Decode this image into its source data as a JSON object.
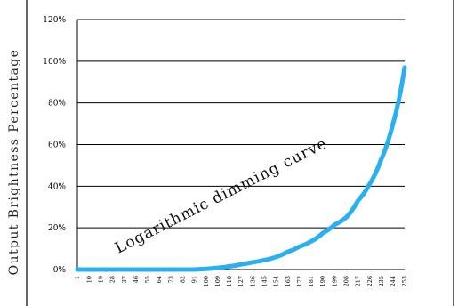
{
  "chart_data": {
    "type": "line",
    "title": "",
    "xlabel": "",
    "ylabel": "Output Brightness Percentage",
    "annotation": "Logarithmic dimming curve",
    "ylim": [
      0,
      120
    ],
    "y_ticks": [
      "0%",
      "20%",
      "40%",
      "60%",
      "80%",
      "100%",
      "120%"
    ],
    "y_tick_values": [
      0,
      20,
      40,
      60,
      80,
      100,
      120
    ],
    "grid": "horizontal",
    "series_color": "#2ab0f0",
    "x": [
      1,
      10,
      19,
      28,
      37,
      46,
      55,
      64,
      73,
      82,
      91,
      100,
      109,
      118,
      127,
      136,
      145,
      154,
      163,
      172,
      181,
      190,
      199,
      208,
      217,
      226,
      235,
      244,
      253
    ],
    "x_tick_labels": [
      "1",
      "10",
      "19",
      "28",
      "37",
      "46",
      "55",
      "64",
      "73",
      "82",
      "91",
      "100",
      "109",
      "118",
      "127",
      "136",
      "145",
      "154",
      "163",
      "172",
      "181",
      "190",
      "199",
      "208",
      "217",
      "226",
      "235",
      "244",
      "253"
    ],
    "series": [
      {
        "values": [
          0,
          0,
          0,
          0,
          0,
          0,
          0,
          0,
          0,
          0,
          0,
          0.3,
          0.8,
          1.5,
          2.5,
          3.5,
          4.5,
          6,
          8.5,
          11,
          13.5,
          17.5,
          21.5,
          25,
          33,
          41,
          53,
          70,
          97
        ]
      }
    ]
  }
}
